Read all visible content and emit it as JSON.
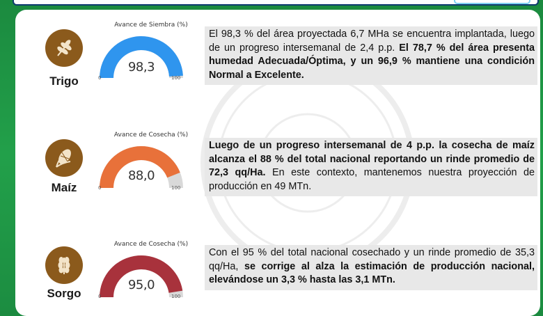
{
  "colors": {
    "background": "#1b8a3f",
    "icon_brown": "#8b5a1c",
    "gauge_track": "#d9d9d9"
  },
  "crops": [
    {
      "name": "Trigo",
      "icon": "wheat-icon",
      "gauge": {
        "title": "Avance de Siembra (%)",
        "value": 98.3,
        "value_label": "98,3",
        "min": "0",
        "max": "100",
        "color": "#2f95ee"
      },
      "text": [
        {
          "t": "El 98,3 % del área proyectada 6,7 MHa se encuentra implantada, luego de un progreso intersemanal de 2,4 p.p. ",
          "b": false
        },
        {
          "t": "El 78,7 % del área presenta humedad Adecuada/Óptima, y un 96,9 % mantiene una condición Normal a Excelente.",
          "b": true
        }
      ]
    },
    {
      "name": "Maíz",
      "icon": "corn-icon",
      "gauge": {
        "title": "Avance de Cosecha (%)",
        "value": 88.0,
        "value_label": "88,0",
        "min": "0",
        "max": "100",
        "color": "#e8713a"
      },
      "text": [
        {
          "t": "Luego de un progreso intersemanal de 4 p.p. la cosecha de maíz alcanza el 88 % del total nacional reportando un rinde promedio de 72,3 qq/Ha.",
          "b": true
        },
        {
          "t": " En este contexto, mantenemos nuestra proyección de producción en 49 MTn.",
          "b": false
        }
      ]
    },
    {
      "name": "Sorgo",
      "icon": "sorghum-icon",
      "gauge": {
        "title": "Avance de Cosecha (%)",
        "value": 95.0,
        "value_label": "95,0",
        "min": "0",
        "max": "100",
        "color": "#a8323c"
      },
      "text": [
        {
          "t": "Con el 95 % del total nacional cosechado y un rinde promedio de 35,3 qq/Ha, ",
          "b": false
        },
        {
          "t": "se corrige al alza la estimación de producción nacional, elevándose un 3,3 % hasta las 3,1 MTn.",
          "b": true
        }
      ]
    }
  ]
}
